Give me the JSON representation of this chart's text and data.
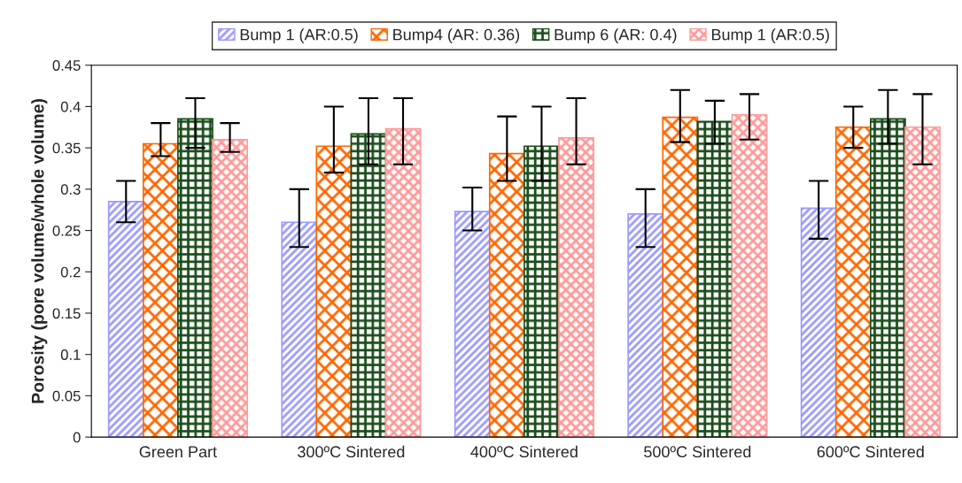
{
  "chart_data": {
    "type": "bar",
    "ylabel": "Porosity (pore volume/whole volume)",
    "categories": [
      "Green Part",
      "300ºC Sintered",
      "400ºC Sintered",
      "500ºC Sintered",
      "600ºC Sintered"
    ],
    "series": [
      {
        "name": "Bump 1 (AR:0.5)",
        "color": "#9999ff",
        "values": [
          0.285,
          0.26,
          0.273,
          0.27,
          0.277
        ],
        "errors": [
          [
            0.26,
            0.31
          ],
          [
            0.23,
            0.3
          ],
          [
            0.25,
            0.302
          ],
          [
            0.23,
            0.3
          ],
          [
            0.24,
            0.31
          ]
        ]
      },
      {
        "name": "Bump4 (AR: 0.36)",
        "color": "#ff6600",
        "values": [
          0.355,
          0.352,
          0.343,
          0.387,
          0.375
        ],
        "errors": [
          [
            0.34,
            0.38
          ],
          [
            0.32,
            0.4
          ],
          [
            0.31,
            0.388
          ],
          [
            0.357,
            0.42
          ],
          [
            0.35,
            0.4
          ]
        ]
      },
      {
        "name": "Bump 6 (AR: 0.4)",
        "color": "#1a4d1a",
        "values": [
          0.385,
          0.367,
          0.352,
          0.382,
          0.385
        ],
        "errors": [
          [
            0.35,
            0.41
          ],
          [
            0.33,
            0.41
          ],
          [
            0.31,
            0.4
          ],
          [
            0.355,
            0.407
          ],
          [
            0.355,
            0.42
          ]
        ]
      },
      {
        "name": "Bump 1 (AR:0.5)",
        "color": "#ff9999",
        "values": [
          0.36,
          0.373,
          0.362,
          0.39,
          0.375
        ],
        "errors": [
          [
            0.345,
            0.38
          ],
          [
            0.33,
            0.41
          ],
          [
            0.33,
            0.41
          ],
          [
            0.36,
            0.415
          ],
          [
            0.33,
            0.415
          ]
        ]
      }
    ],
    "ylim": [
      0,
      0.45
    ],
    "yticks": [
      0,
      0.05,
      0.1,
      0.15,
      0.2,
      0.25,
      0.3,
      0.35,
      0.4,
      0.45
    ],
    "grid": false,
    "legend": "top"
  }
}
